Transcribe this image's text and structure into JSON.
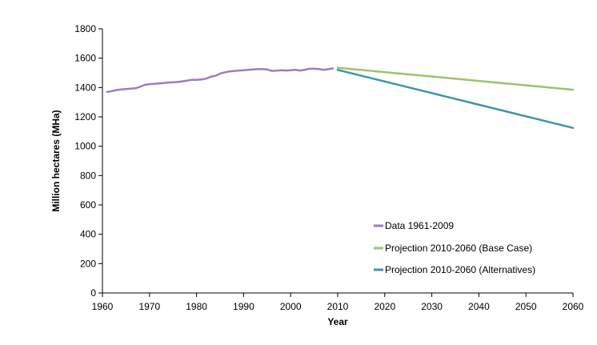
{
  "chart_data": {
    "type": "line",
    "title": "",
    "xlabel": "Year",
    "ylabel": "Million hectares (MHa)",
    "xlim": [
      1960,
      2060
    ],
    "ylim": [
      0,
      1800
    ],
    "x_ticks": [
      1960,
      1970,
      1980,
      1990,
      2000,
      2010,
      2020,
      2030,
      2040,
      2050,
      2060
    ],
    "y_ticks": [
      0,
      200,
      400,
      600,
      800,
      1000,
      1200,
      1400,
      1600,
      1800
    ],
    "grid": false,
    "legend_position": "bottom-right",
    "series": [
      {
        "name": "Data 1961-2009",
        "color": "#9b7fbd",
        "x": [
          1961,
          1962,
          1963,
          1964,
          1965,
          1966,
          1967,
          1968,
          1969,
          1970,
          1971,
          1972,
          1973,
          1974,
          1975,
          1976,
          1977,
          1978,
          1979,
          1980,
          1981,
          1982,
          1983,
          1984,
          1985,
          1986,
          1987,
          1988,
          1989,
          1990,
          1991,
          1992,
          1993,
          1994,
          1995,
          1996,
          1997,
          1998,
          1999,
          2000,
          2001,
          2002,
          2003,
          2004,
          2005,
          2006,
          2007,
          2008,
          2009
        ],
        "values": [
          1370,
          1375,
          1383,
          1387,
          1390,
          1392,
          1395,
          1405,
          1418,
          1423,
          1425,
          1428,
          1430,
          1434,
          1436,
          1438,
          1442,
          1447,
          1452,
          1452,
          1455,
          1460,
          1473,
          1480,
          1495,
          1503,
          1510,
          1513,
          1516,
          1518,
          1520,
          1523,
          1525,
          1525,
          1523,
          1513,
          1515,
          1518,
          1516,
          1518,
          1520,
          1516,
          1520,
          1528,
          1528,
          1526,
          1520,
          1525,
          1530
        ]
      },
      {
        "name": "Projection 2010-2060 (Base Case)",
        "color": "#9dc36b",
        "x": [
          2010,
          2060
        ],
        "values": [
          1535,
          1385
        ]
      },
      {
        "name": "Projection 2010-2060 (Alternatives)",
        "color": "#3a97a8",
        "x": [
          2010,
          2060
        ],
        "values": [
          1520,
          1125
        ]
      }
    ]
  }
}
